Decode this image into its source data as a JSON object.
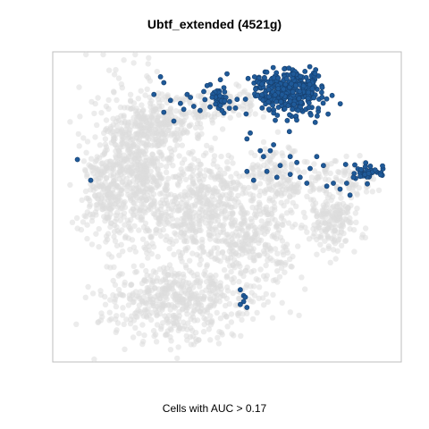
{
  "chart_data": {
    "type": "scatter",
    "title": "Ubtf_extended (4521g)",
    "xlabel": "Cells with AUC > 0.17",
    "ylabel": "",
    "xlim": [
      0,
      100
    ],
    "ylim": [
      0,
      100
    ],
    "grid": false,
    "colors": {
      "background_cells": "#dcdcdc",
      "highlighted_cells": "#1f5a99",
      "highlighted_edge": "#163f6e",
      "frame": "#bdbdbd"
    },
    "series": [
      {
        "name": "all_cells",
        "clusters": [
          {
            "cx": 24,
            "cy": 63,
            "sx": 7,
            "sy": 13,
            "n": 700
          },
          {
            "cx": 14,
            "cy": 55,
            "sx": 4,
            "sy": 8,
            "n": 180
          },
          {
            "cx": 30,
            "cy": 78,
            "sx": 7,
            "sy": 3,
            "n": 160
          },
          {
            "cx": 45,
            "cy": 55,
            "sx": 5,
            "sy": 7,
            "n": 220
          },
          {
            "cx": 56,
            "cy": 40,
            "sx": 8,
            "sy": 8,
            "n": 340
          },
          {
            "cx": 64,
            "cy": 60,
            "sx": 5,
            "sy": 6,
            "n": 160
          },
          {
            "cx": 35,
            "cy": 19,
            "sx": 11,
            "sy": 7,
            "n": 520
          },
          {
            "cx": 82,
            "cy": 45,
            "sx": 4,
            "sy": 5,
            "n": 170
          },
          {
            "cx": 84,
            "cy": 60,
            "sx": 6,
            "sy": 3,
            "n": 90
          },
          {
            "cx": 47,
            "cy": 85,
            "sx": 8,
            "sy": 3,
            "n": 120
          },
          {
            "cx": 38,
            "cy": 42,
            "sx": 4,
            "sy": 6,
            "n": 100
          }
        ]
      },
      {
        "name": "cells_with_auc_above_threshold",
        "threshold": 0.17,
        "clusters": [
          {
            "cx": 70,
            "cy": 89,
            "sx": 4.5,
            "sy": 4,
            "n": 320
          },
          {
            "cx": 62,
            "cy": 90,
            "sx": 2.5,
            "sy": 3,
            "n": 60
          },
          {
            "cx": 47,
            "cy": 87,
            "sx": 1.8,
            "sy": 2.5,
            "n": 45
          },
          {
            "cx": 92,
            "cy": 62,
            "sx": 2.5,
            "sy": 1.3,
            "n": 40
          }
        ],
        "points": [
          [
            33,
            86
          ],
          [
            36,
            85
          ],
          [
            34,
            79
          ],
          [
            38,
            88
          ],
          [
            39,
            87
          ],
          [
            37,
            83
          ],
          [
            40,
            84
          ],
          [
            31,
            82
          ],
          [
            5,
            66
          ],
          [
            9,
            59
          ],
          [
            30,
            94
          ],
          [
            31,
            92
          ],
          [
            28,
            88
          ],
          [
            56,
            73
          ],
          [
            60,
            69
          ],
          [
            61,
            67
          ],
          [
            62,
            62
          ],
          [
            63,
            69
          ],
          [
            66,
            64
          ],
          [
            65,
            60
          ],
          [
            69,
            67
          ],
          [
            71,
            65
          ],
          [
            72,
            60
          ],
          [
            75,
            63
          ],
          [
            77,
            67
          ],
          [
            79,
            64
          ],
          [
            80,
            57
          ],
          [
            82,
            58
          ],
          [
            84,
            56
          ],
          [
            86,
            58
          ],
          [
            88,
            60
          ],
          [
            87,
            54
          ],
          [
            57,
            75
          ],
          [
            64,
            71
          ],
          [
            69,
            61
          ],
          [
            74,
            58
          ],
          [
            56,
            62
          ],
          [
            58,
            59
          ],
          [
            54,
            22
          ],
          [
            55,
            20
          ],
          [
            55,
            18
          ],
          [
            56,
            16
          ],
          [
            54,
            17
          ],
          [
            55.5,
            19.5
          ],
          [
            48,
            93
          ],
          [
            50,
            95
          ],
          [
            44,
            91
          ],
          [
            43,
            89
          ]
        ]
      }
    ]
  }
}
